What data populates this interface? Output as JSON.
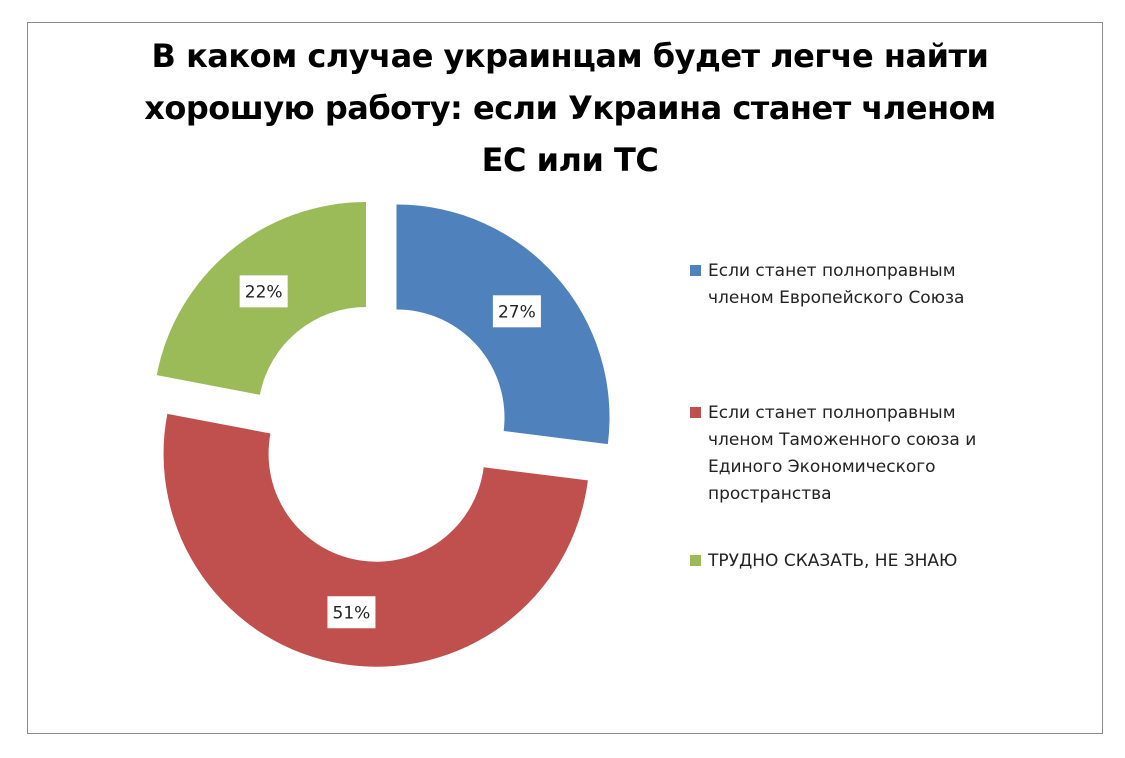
{
  "chart_data": {
    "type": "pie",
    "variant": "donut-exploded",
    "title": "В каком случае украинцам будет легче найти хорошую работу: если Украина станет членом ЕС или ТС",
    "legend_position": "right",
    "data_labels": true,
    "slices": [
      {
        "label": "Если станет полноправным членом Европейского Союза",
        "value": 27,
        "value_label": "27%",
        "color": "#4F81BD"
      },
      {
        "label": "Если станет полноправным членом Таможенного союза и Единого Экономического пространства",
        "value": 51,
        "value_label": "51%",
        "color": "#C0504D"
      },
      {
        "label": "ТРУДНО СКАЗАТЬ, НЕ ЗНАЮ",
        "value": 22,
        "value_label": "22%",
        "color": "#9BBB59"
      }
    ]
  }
}
